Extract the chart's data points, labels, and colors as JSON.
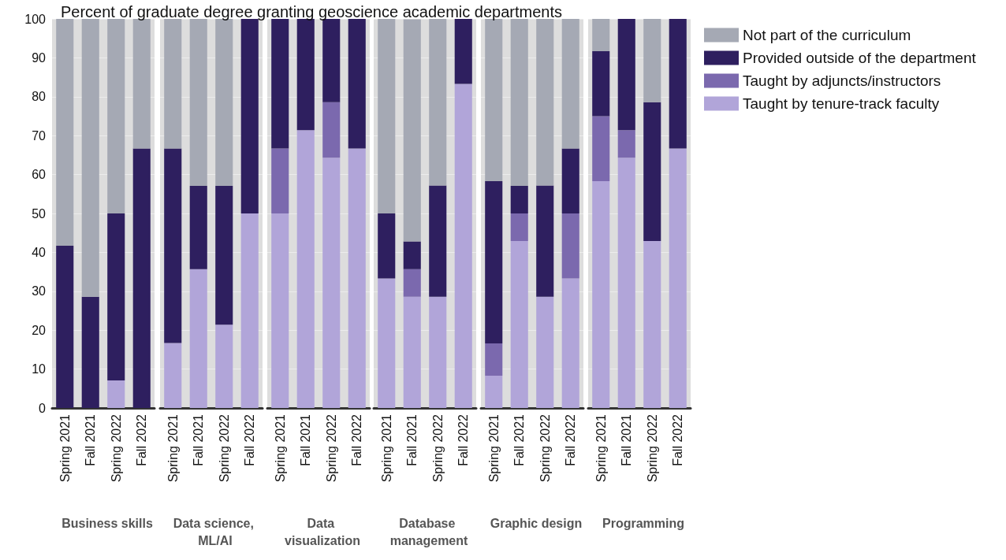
{
  "chart_data": [
    {
      "type": "bar",
      "stacked": true,
      "title": "Percent of graduate degree granting geoscience academic departments",
      "xlabel": "Business skills",
      "categories": [
        "Spring 2021",
        "Fall 2021",
        "Spring 2022",
        "Fall 2022"
      ],
      "ylim": [
        0,
        100
      ],
      "yticks": [
        0,
        10,
        20,
        30,
        40,
        50,
        60,
        70,
        80,
        90,
        100
      ],
      "grid": "y",
      "legend": "right",
      "series": [
        {
          "name": "Taught by tenure-track faculty",
          "color": "#b1a5d9",
          "values": [
            0,
            0,
            7.1,
            0
          ]
        },
        {
          "name": "Taught by adjuncts/instructors",
          "color": "#7b69ae",
          "values": [
            0,
            0,
            0,
            0
          ]
        },
        {
          "name": "Provided outside of the department",
          "color": "#2e1f5f",
          "values": [
            41.7,
            28.6,
            42.9,
            66.7
          ]
        },
        {
          "name": "Not part of the curriculum",
          "color": "#a5a9b4",
          "values": [
            58.3,
            71.4,
            50,
            33.3
          ]
        }
      ]
    },
    {
      "type": "bar",
      "stacked": true,
      "xlabel": "Data science, ML/AI",
      "categories": [
        "Spring 2021",
        "Fall 2021",
        "Spring 2022",
        "Fall 2022"
      ],
      "ylim": [
        0,
        100
      ],
      "yticks": [
        0,
        10,
        20,
        30,
        40,
        50,
        60,
        70,
        80,
        90,
        100
      ],
      "grid": "y",
      "tick_labels": "x",
      "series": [
        {
          "color": "#b1a5d9",
          "values": [
            16.7,
            35.7,
            21.4,
            50
          ]
        },
        {
          "color": "#7b69ae",
          "values": [
            0,
            0,
            0,
            0
          ]
        },
        {
          "color": "#2e1f5f",
          "values": [
            50,
            21.4,
            35.7,
            50
          ]
        },
        {
          "color": "#a5a9b4",
          "values": [
            33.3,
            42.9,
            42.9,
            0
          ]
        }
      ]
    },
    {
      "type": "bar",
      "stacked": true,
      "xlabel": "Data visualization",
      "categories": [
        "Spring 2021",
        "Fall 2021",
        "Spring 2022",
        "Fall 2022"
      ],
      "ylim": [
        0,
        100
      ],
      "yticks": [
        0,
        10,
        20,
        30,
        40,
        50,
        60,
        70,
        80,
        90,
        100
      ],
      "grid": "y",
      "tick_labels": "x",
      "series": [
        {
          "color": "#b1a5d9",
          "values": [
            50,
            71.4,
            64.3,
            66.7
          ]
        },
        {
          "color": "#7b69ae",
          "values": [
            16.7,
            0,
            14.3,
            0
          ]
        },
        {
          "color": "#2e1f5f",
          "values": [
            33.3,
            28.6,
            21.4,
            33.3
          ]
        },
        {
          "color": "#a5a9b4",
          "values": [
            0,
            0,
            0,
            0
          ]
        }
      ]
    },
    {
      "type": "bar",
      "stacked": true,
      "xlabel": "Database management",
      "categories": [
        "Spring 2021",
        "Fall 2021",
        "Spring 2022",
        "Fall 2022"
      ],
      "ylim": [
        0,
        100
      ],
      "yticks": [
        0,
        10,
        20,
        30,
        40,
        50,
        60,
        70,
        80,
        90,
        100
      ],
      "grid": "y",
      "tick_labels": "x",
      "series": [
        {
          "color": "#b1a5d9",
          "values": [
            33.3,
            28.6,
            28.6,
            83.3
          ]
        },
        {
          "color": "#7b69ae",
          "values": [
            0,
            7.1,
            0,
            0
          ]
        },
        {
          "color": "#2e1f5f",
          "values": [
            16.7,
            7.1,
            28.6,
            16.7
          ]
        },
        {
          "color": "#a5a9b4",
          "values": [
            50,
            57.1,
            42.9,
            0
          ]
        }
      ]
    },
    {
      "type": "bar",
      "stacked": true,
      "xlabel": "Graphic design",
      "categories": [
        "Spring 2021",
        "Fall 2021",
        "Spring 2022",
        "Fall 2022"
      ],
      "ylim": [
        0,
        100
      ],
      "yticks": [
        0,
        10,
        20,
        30,
        40,
        50,
        60,
        70,
        80,
        90,
        100
      ],
      "grid": "y",
      "tick_labels": "x",
      "series": [
        {
          "color": "#b1a5d9",
          "values": [
            8.3,
            42.9,
            28.6,
            33.3
          ]
        },
        {
          "color": "#7b69ae",
          "values": [
            8.3,
            7.1,
            0,
            16.7
          ]
        },
        {
          "color": "#2e1f5f",
          "values": [
            41.7,
            7.1,
            28.6,
            16.7
          ]
        },
        {
          "color": "#a5a9b4",
          "values": [
            41.7,
            42.9,
            42.9,
            33.3
          ]
        }
      ]
    },
    {
      "type": "bar",
      "stacked": true,
      "xlabel": "Programming",
      "categories": [
        "Spring 2021",
        "Fall 2021",
        "Spring 2022",
        "Fall 2022"
      ],
      "ylim": [
        0,
        100
      ],
      "yticks": [
        0,
        10,
        20,
        30,
        40,
        50,
        60,
        70,
        80,
        90,
        100
      ],
      "grid": "y",
      "tick_labels": "x",
      "series": [
        {
          "color": "#b1a5d9",
          "values": [
            58.3,
            64.3,
            42.9,
            66.7
          ]
        },
        {
          "color": "#7b69ae",
          "values": [
            16.7,
            7.1,
            0,
            0
          ]
        },
        {
          "color": "#2e1f5f",
          "values": [
            16.7,
            28.6,
            35.7,
            33.3
          ]
        },
        {
          "color": "#a5a9b4",
          "values": [
            8.3,
            0,
            21.4,
            0
          ]
        }
      ]
    }
  ]
}
